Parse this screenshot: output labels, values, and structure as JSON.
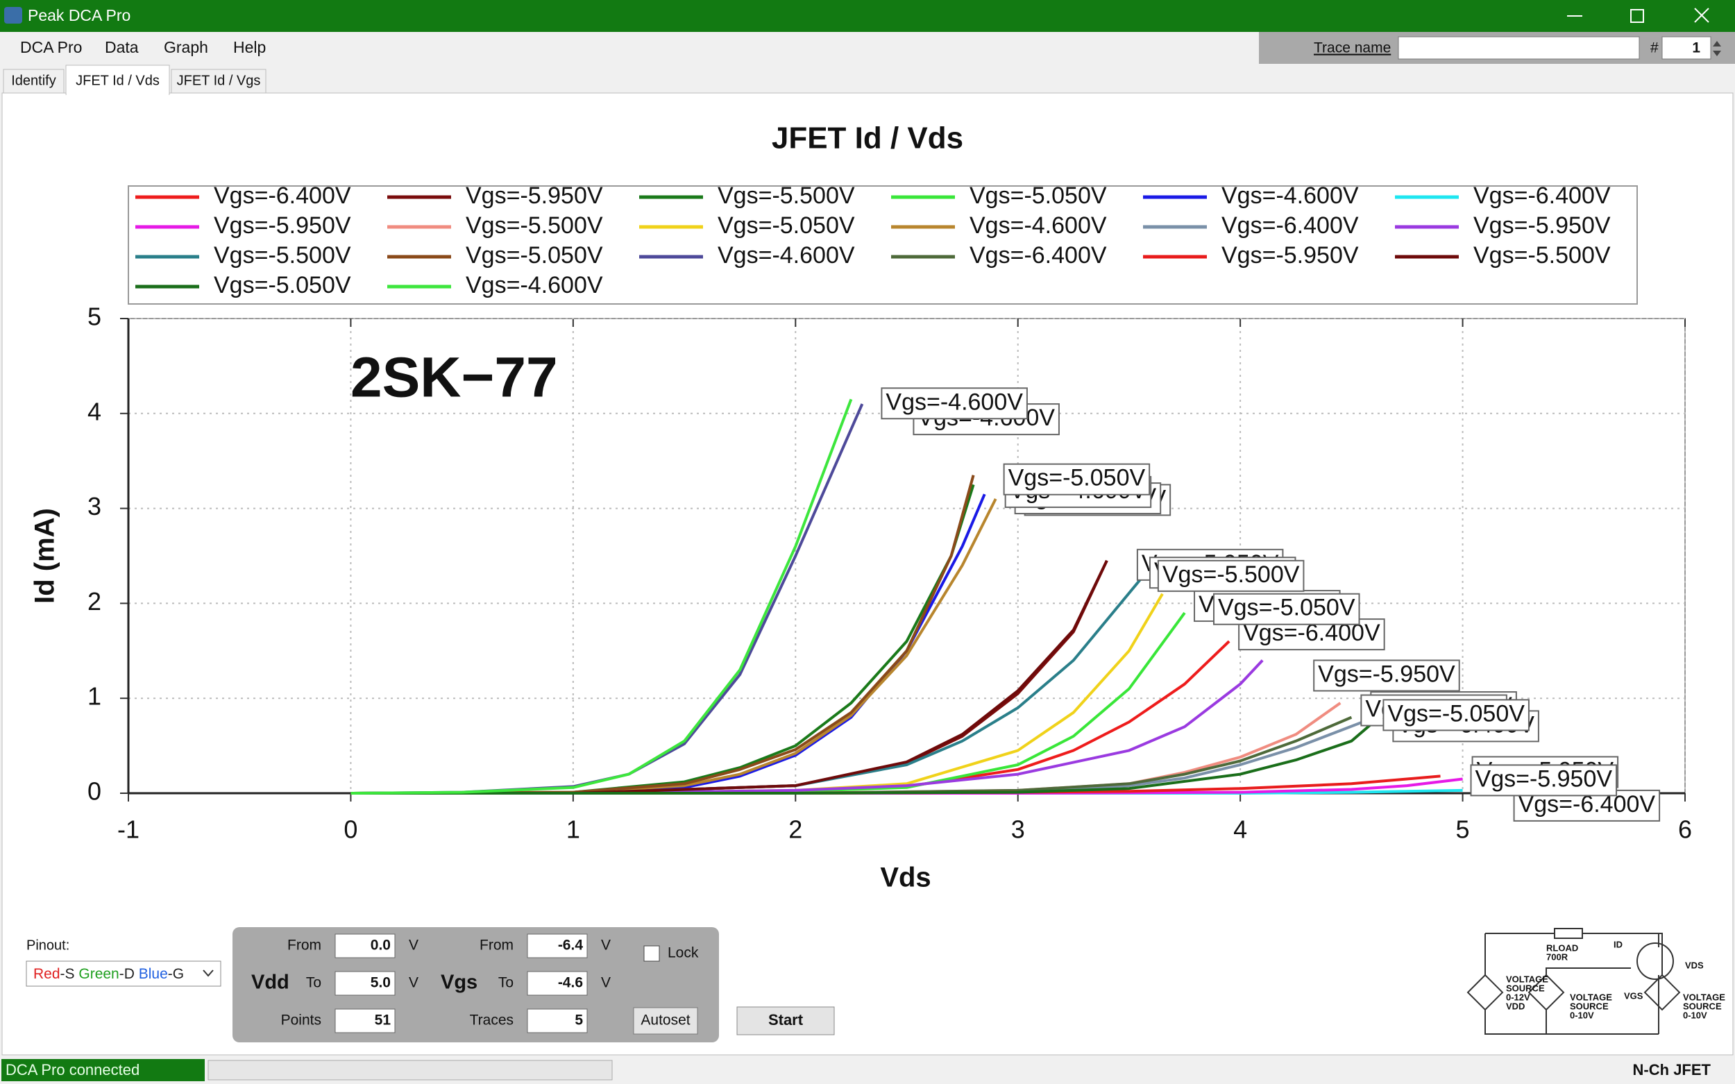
{
  "window": {
    "title": "Peak DCA Pro"
  },
  "menu": [
    "DCA Pro",
    "Data",
    "Graph",
    "Help"
  ],
  "trace": {
    "label": "Trace name",
    "number_label": "#",
    "number": "1"
  },
  "tabs": {
    "items": [
      "Identify",
      "JFET Id / Vds",
      "JFET Id / Vgs"
    ],
    "active": 1
  },
  "chart_data": {
    "type": "line",
    "title": "JFET Id / Vds",
    "x_label": "Vds",
    "y_label": "Id (mA)",
    "annotation": "2SK−77",
    "xlim": [
      -1,
      6
    ],
    "ylim": [
      0,
      5
    ],
    "xticks": [
      -1,
      0,
      1,
      2,
      3,
      4,
      5,
      6
    ],
    "yticks": [
      0,
      1,
      2,
      3,
      4,
      5
    ],
    "grid": true,
    "legend_columns": 6,
    "series": [
      {
        "name": "Vgs=-6.400V",
        "color": "#ee1c1c",
        "x": [
          0,
          1,
          2,
          2.5,
          3,
          3.25,
          3.5,
          3.75,
          3.95
        ],
        "values": [
          0,
          0,
          0.02,
          0.07,
          0.25,
          0.45,
          0.75,
          1.15,
          1.6
        ]
      },
      {
        "name": "Vgs=-5.950V",
        "color": "#7a0c0c",
        "x": [
          0,
          1,
          2,
          2.5,
          2.75,
          3,
          3.25,
          3.4
        ],
        "values": [
          0,
          0,
          0.08,
          0.32,
          0.6,
          1.05,
          1.7,
          2.45
        ]
      },
      {
        "name": "Vgs=-5.500V",
        "color": "#1a7a1a",
        "x": [
          0,
          1,
          1.5,
          1.75,
          2,
          2.25,
          2.5,
          2.7,
          2.8
        ],
        "values": [
          0,
          0.01,
          0.12,
          0.27,
          0.5,
          0.95,
          1.6,
          2.5,
          3.25
        ]
      },
      {
        "name": "Vgs=-5.050V",
        "color": "#39e639",
        "x": [
          0,
          1,
          2,
          2.5,
          3,
          3.25,
          3.5,
          3.75
        ],
        "values": [
          0,
          0,
          0.02,
          0.06,
          0.3,
          0.6,
          1.1,
          1.9
        ]
      },
      {
        "name": "Vgs=-4.600V",
        "color": "#1a1ae6",
        "x": [
          0,
          1,
          1.5,
          1.75,
          2,
          2.25,
          2.5,
          2.75,
          2.85
        ],
        "values": [
          0,
          0,
          0.06,
          0.18,
          0.4,
          0.8,
          1.5,
          2.6,
          3.15
        ]
      },
      {
        "name": "Vgs=-6.400V",
        "color": "#1ee6f0",
        "x": [
          0,
          3,
          4,
          4.5,
          5
        ],
        "values": [
          0,
          0,
          0,
          0.01,
          0.03
        ]
      },
      {
        "name": "Vgs=-5.950V",
        "color": "#e61ae6",
        "x": [
          0,
          3,
          4,
          4.5,
          4.75,
          5
        ],
        "values": [
          0,
          0,
          0.01,
          0.04,
          0.08,
          0.15
        ]
      },
      {
        "name": "Vgs=-5.500V",
        "color": "#f08c80",
        "x": [
          0,
          2,
          3,
          3.5,
          3.75,
          4,
          4.25,
          4.45
        ],
        "values": [
          0,
          0,
          0.03,
          0.1,
          0.22,
          0.38,
          0.62,
          0.95
        ]
      },
      {
        "name": "Vgs=-5.050V",
        "color": "#f0d21a",
        "x": [
          0,
          1,
          2,
          2.5,
          3,
          3.25,
          3.5,
          3.65
        ],
        "values": [
          0,
          0,
          0.03,
          0.1,
          0.45,
          0.85,
          1.5,
          2.1
        ]
      },
      {
        "name": "Vgs=-4.600V",
        "color": "#b8862e",
        "x": [
          0,
          1,
          1.5,
          1.75,
          2,
          2.25,
          2.5,
          2.75,
          2.9
        ],
        "values": [
          0,
          0.01,
          0.08,
          0.2,
          0.42,
          0.82,
          1.45,
          2.4,
          3.1
        ]
      },
      {
        "name": "Vgs=-6.400V",
        "color": "#7a90a8",
        "x": [
          0,
          2,
          3,
          3.5,
          3.75,
          4,
          4.25,
          4.55
        ],
        "values": [
          0,
          0,
          0.02,
          0.08,
          0.16,
          0.3,
          0.48,
          0.75
        ]
      },
      {
        "name": "Vgs=-5.950V",
        "color": "#9a3ae0",
        "x": [
          0,
          1,
          2,
          2.5,
          3,
          3.5,
          3.75,
          4,
          4.1
        ],
        "values": [
          0,
          0,
          0.03,
          0.08,
          0.2,
          0.45,
          0.7,
          1.15,
          1.4
        ]
      },
      {
        "name": "Vgs=-5.500V",
        "color": "#2a7f8a",
        "x": [
          0,
          1,
          2,
          2.5,
          2.75,
          3,
          3.25,
          3.55
        ],
        "values": [
          0,
          0,
          0.08,
          0.3,
          0.55,
          0.9,
          1.4,
          2.25
        ]
      },
      {
        "name": "Vgs=-5.050V",
        "color": "#8a4a1a",
        "x": [
          0,
          1,
          1.5,
          1.75,
          2,
          2.25,
          2.5,
          2.7,
          2.8
        ],
        "values": [
          0,
          0.01,
          0.1,
          0.25,
          0.46,
          0.85,
          1.5,
          2.5,
          3.35
        ]
      },
      {
        "name": "Vgs=-4.600V",
        "color": "#4e4a9a",
        "x": [
          0,
          0.5,
          1,
          1.25,
          1.5,
          1.75,
          2,
          2.3
        ],
        "values": [
          0,
          0.01,
          0.07,
          0.2,
          0.52,
          1.25,
          2.5,
          4.1
        ]
      },
      {
        "name": "Vgs=-6.400V",
        "color": "#4e6a3a",
        "x": [
          0,
          2,
          3,
          3.5,
          3.75,
          4,
          4.25,
          4.5
        ],
        "values": [
          0,
          0,
          0.03,
          0.1,
          0.2,
          0.34,
          0.55,
          0.8
        ]
      },
      {
        "name": "Vgs=-5.950V",
        "color": "#e81c1c",
        "x": [
          0,
          2,
          3,
          3.5,
          4,
          4.5,
          4.9
        ],
        "values": [
          0,
          0,
          0.01,
          0.02,
          0.05,
          0.1,
          0.18
        ]
      },
      {
        "name": "Vgs=-5.500V",
        "color": "#6e0a0a",
        "x": [
          0,
          1,
          2,
          2.5,
          2.75,
          3,
          3.25,
          3.4
        ],
        "values": [
          0,
          0,
          0.08,
          0.33,
          0.62,
          1.08,
          1.72,
          2.45
        ]
      },
      {
        "name": "Vgs=-5.050V",
        "color": "#1a6e1a",
        "x": [
          0,
          2,
          3,
          3.5,
          4,
          4.25,
          4.5,
          4.6
        ],
        "values": [
          0,
          0,
          0.01,
          0.05,
          0.2,
          0.35,
          0.55,
          0.75
        ]
      },
      {
        "name": "Vgs=-4.600V",
        "color": "#3de63d",
        "x": [
          0,
          0.5,
          1,
          1.25,
          1.5,
          1.75,
          2,
          2.25
        ],
        "values": [
          0,
          0.01,
          0.06,
          0.2,
          0.55,
          1.3,
          2.6,
          4.15
        ]
      }
    ]
  },
  "controls": {
    "pinout_label": "Pinout:",
    "pinout": [
      {
        "text": "Red",
        "color": "#e02020"
      },
      {
        "text": "-S ",
        "color": "#222222"
      },
      {
        "text": "Green",
        "color": "#20a020"
      },
      {
        "text": "-D ",
        "color": "#222222"
      },
      {
        "text": "Blue",
        "color": "#2060e0"
      },
      {
        "text": "-G",
        "color": "#222222"
      }
    ],
    "unit": "V",
    "vdd": {
      "label": "Vdd",
      "from_label": "From",
      "from": "0.0",
      "to_label": "To",
      "to": "5.0",
      "points_label": "Points",
      "points": "51"
    },
    "vgs": {
      "label": "Vgs",
      "from_label": "From",
      "from": "-6.4",
      "to_label": "To",
      "to": "-4.6",
      "traces_label": "Traces",
      "traces": "5"
    },
    "lock": "Lock",
    "autoset": "Autoset",
    "start": "Start"
  },
  "diagram": {
    "rload": "RLOAD",
    "rload_value": "700R",
    "id": "ID",
    "vds": "VDS",
    "vgs": "VGS",
    "source_vdd": [
      "VOLTAGE",
      "SOURCE",
      "0-12V",
      "VDD"
    ],
    "source_gs": [
      "VOLTAGE",
      "SOURCE",
      "0-10V"
    ],
    "source_ds": [
      "VOLTAGE",
      "SOURCE",
      "0-10V"
    ]
  },
  "status": {
    "connection": "DCA Pro connected",
    "device": "N-Ch JFET"
  }
}
